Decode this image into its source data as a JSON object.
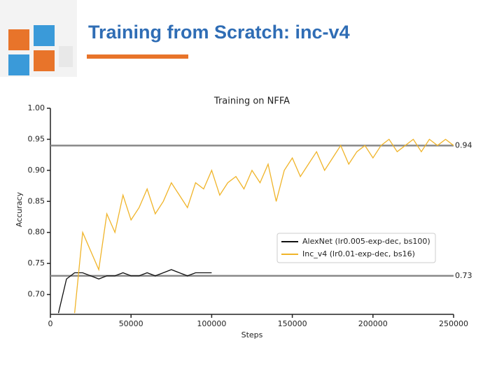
{
  "slide_title": "Training from Scratch: inc-v4",
  "chart_data": {
    "type": "line",
    "title": "Training on NFFA",
    "x_label": "Steps",
    "y_label": "Accuracy",
    "xlim": [
      0,
      250000
    ],
    "xticks": [
      0,
      50000,
      100000,
      150000,
      200000,
      250000
    ],
    "ylim": [
      0.668,
      1.0
    ],
    "yticks": [
      {
        "value": 0.7,
        "label": "0.70"
      },
      {
        "value": 0.75,
        "label": "0.75"
      },
      {
        "value": 0.8,
        "label": "0.80"
      },
      {
        "value": 0.85,
        "label": "0.85"
      },
      {
        "value": 0.9,
        "label": "0.90"
      },
      {
        "value": 0.95,
        "label": "0.95"
      },
      {
        "value": 1.0,
        "label": "1.00"
      }
    ],
    "reference_lines": [
      {
        "value": 0.94,
        "label": "0.94",
        "color": "#888888"
      },
      {
        "value": 0.73,
        "label": "0.73",
        "color": "#888888"
      }
    ],
    "legend": "center right",
    "series": [
      {
        "name": "AlexNet (lr0.005-exp-dec, bs100)",
        "color": "#111111",
        "x": [
          5000,
          10000,
          15000,
          20000,
          25000,
          30000,
          35000,
          40000,
          45000,
          50000,
          55000,
          60000,
          65000,
          70000,
          75000,
          80000,
          85000,
          90000,
          95000,
          100000
        ],
        "values": [
          0.67,
          0.725,
          0.735,
          0.735,
          0.73,
          0.725,
          0.73,
          0.73,
          0.735,
          0.73,
          0.73,
          0.735,
          0.73,
          0.735,
          0.74,
          0.735,
          0.73,
          0.735,
          0.735,
          0.735
        ]
      },
      {
        "name": "Inc_v4 (lr0.01-exp-dec, bs16)",
        "color": "#f0b429",
        "x": [
          15000,
          20000,
          25000,
          30000,
          35000,
          40000,
          45000,
          50000,
          55000,
          60000,
          65000,
          70000,
          75000,
          80000,
          85000,
          90000,
          95000,
          100000,
          105000,
          110000,
          115000,
          120000,
          125000,
          130000,
          135000,
          140000,
          145000,
          150000,
          155000,
          160000,
          165000,
          170000,
          175000,
          180000,
          185000,
          190000,
          195000,
          200000,
          205000,
          210000,
          215000,
          220000,
          225000,
          230000,
          235000,
          240000,
          245000,
          250000
        ],
        "values": [
          0.67,
          0.8,
          0.77,
          0.74,
          0.83,
          0.8,
          0.86,
          0.82,
          0.84,
          0.87,
          0.83,
          0.85,
          0.88,
          0.86,
          0.84,
          0.88,
          0.87,
          0.9,
          0.86,
          0.88,
          0.89,
          0.87,
          0.9,
          0.88,
          0.91,
          0.85,
          0.9,
          0.92,
          0.89,
          0.91,
          0.93,
          0.9,
          0.92,
          0.94,
          0.91,
          0.93,
          0.94,
          0.92,
          0.94,
          0.95,
          0.93,
          0.94,
          0.95,
          0.93,
          0.95,
          0.94,
          0.95,
          0.94
        ]
      }
    ]
  }
}
